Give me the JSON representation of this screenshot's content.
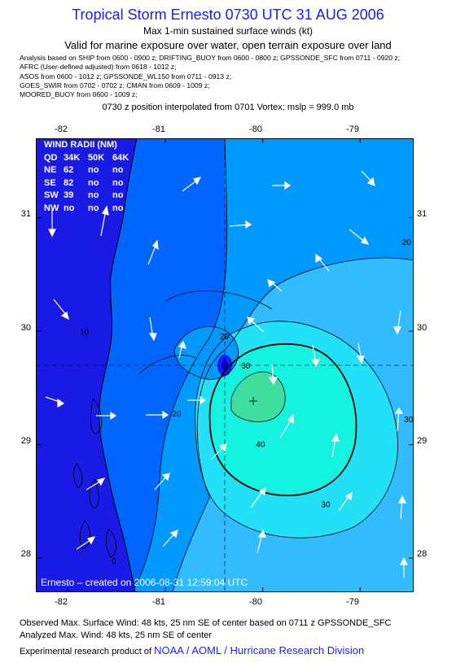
{
  "title": "Tropical Storm Ernesto 0730 UTC 31 AUG 2006",
  "subtitle1": "Max 1-min sustained surface winds (kt)",
  "subtitle2": "Valid for marine exposure over water, open terrain exposure over land",
  "analysis_lines": [
    "Analysis based on  SHIP from 0600 - 0900 z;  DRIFTING_BUOY from 0600 - 0800 z;  GPSSONDE_SFC from 0711 - 0920 z;",
    "AFRC (User-defined adjusted) from 0618 - 1012 z;",
    "ASOS from 0600 - 1012 z;  GPSSONDE_WL150 from 0711 - 0913 z;",
    "GOES_SWIR from 0702 - 0702 z;  CMAN from 0609 - 1009 z;",
    "MOORED_BUOY from 0600 - 1009 z;"
  ],
  "position_line": "0730 z position interpolated from 0701 Vortex; mslp = 999.0 mb",
  "map": {
    "lon_labels": [
      "-82",
      "-81",
      "-80",
      "-79"
    ],
    "lat_labels": [
      "31",
      "30",
      "29",
      "28"
    ],
    "contour_labels": [
      {
        "text": "10",
        "lon": -81.88,
        "lat": 29.97
      },
      {
        "text": "20",
        "lon": -80.44,
        "lat": 29.93
      },
      {
        "text": "20",
        "lon": -78.57,
        "lat": 30.76
      },
      {
        "text": "30",
        "lon": -79.4,
        "lat": 28.45
      },
      {
        "text": "30",
        "lon": -78.55,
        "lat": 29.2
      },
      {
        "text": "40",
        "lon": -80.07,
        "lat": 28.98
      },
      {
        "text": "30",
        "lon": -80.22,
        "lat": 29.67
      },
      {
        "text": "20",
        "lon": -80.93,
        "lat": 29.25
      },
      {
        "text": "0",
        "lon": -81.55,
        "lat": 27.95
      }
    ],
    "colors": {
      "lt10": "#0066ff",
      "b10_20": "#0099ff",
      "b20_30": "#33bbff",
      "b30_40": "#22e0f6",
      "b40_45": "#14f2e0",
      "gt45": "#3fdd9e",
      "land": "#1a1ae6",
      "land_edge": "#2b45ff",
      "eye_low": "#1a1aff"
    }
  },
  "wind_radii": {
    "header": "WIND RADII (NM)",
    "columns": [
      "QD",
      "34K",
      "50K",
      "64K"
    ],
    "rows": [
      [
        "NE",
        "62",
        "no",
        "no"
      ],
      [
        "SE",
        "82",
        "no",
        "no"
      ],
      [
        "SW",
        "39",
        "no",
        "no"
      ],
      [
        "NW",
        "no",
        "no",
        "no"
      ]
    ]
  },
  "credit": "Ernesto  –  created on 2006-08-31  12:59:04  UTC",
  "footer": {
    "line1": "Observed Max. Surface Wind: 48 kts, 25 nm SE of center based on 0711 z GPSSONDE_SFC",
    "line2": "Analyzed Max. Wind: 48 kts, 25 nm SE of center",
    "line3_prefix": "Experimental research product of",
    "line3_org": "NOAA / AOML / Hurricane Research Division"
  }
}
